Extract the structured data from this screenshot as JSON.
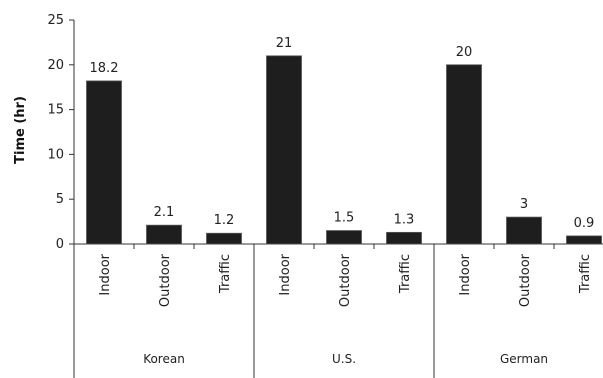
{
  "chart_data": {
    "type": "bar",
    "title": "",
    "xlabel": "",
    "ylabel": "Time (hr)",
    "ylim": [
      0,
      25
    ],
    "yticks": [
      0,
      5,
      10,
      15,
      20,
      25
    ],
    "grid": false,
    "bar_color": "#1e1e1e",
    "groups": [
      {
        "name": "Korean",
        "categories": [
          "Indoor",
          "Outdoor",
          "Traffic"
        ],
        "values": [
          18.2,
          2.1,
          1.2
        ],
        "labels": [
          "18.2",
          "2.1",
          "1.2"
        ]
      },
      {
        "name": "U.S.",
        "categories": [
          "Indoor",
          "Outdoor",
          "Traffic"
        ],
        "values": [
          21,
          1.5,
          1.3
        ],
        "labels": [
          "21",
          "1.5",
          "1.3"
        ]
      },
      {
        "name": "German",
        "categories": [
          "Indoor",
          "Outdoor",
          "Traffic"
        ],
        "values": [
          20,
          3,
          0.9
        ],
        "labels": [
          "20",
          "3",
          "0.9"
        ]
      }
    ]
  }
}
